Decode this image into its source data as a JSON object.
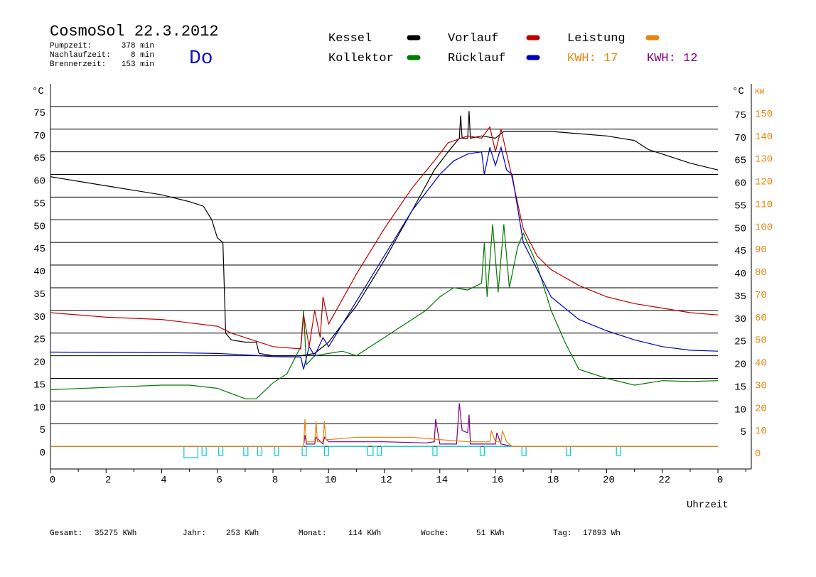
{
  "chart_data": {
    "type": "line",
    "title": "CosmoSol 22.3.2012",
    "info": [
      {
        "label": "Pumpzeit:",
        "value": "378 min"
      },
      {
        "label": "Nachlaufzeit:",
        "value": "8 min"
      },
      {
        "label": "Brennerzeit:",
        "value": "153 min"
      }
    ],
    "weekday": "Do",
    "kwh_labels": [
      {
        "label": "KWH: 17",
        "color": "#e8850f"
      },
      {
        "label": "KWH: 12",
        "color": "#800080"
      }
    ],
    "y_label": "°C",
    "y_right_label": "°C",
    "y2_label": "KW",
    "x_label": "Uhrzeit",
    "xlim": [
      0,
      25.2
    ],
    "xticks": [
      0,
      2,
      4,
      6,
      8,
      10,
      12,
      14,
      16,
      18,
      20,
      22,
      {
        "value": 24,
        "label": "0"
      }
    ],
    "ylim": [
      -5,
      80
    ],
    "yticks": [
      0,
      5,
      10,
      15,
      20,
      25,
      30,
      35,
      40,
      45,
      50,
      55,
      60,
      65,
      70,
      75
    ],
    "y_right_ticks": [
      5,
      10,
      15,
      20,
      25,
      30,
      35,
      40,
      45,
      50,
      55,
      60,
      65,
      70,
      75
    ],
    "y2lim": [
      -10,
      160
    ],
    "y2ticks": [
      0,
      10,
      20,
      30,
      40,
      50,
      60,
      70,
      80,
      90,
      100,
      110,
      120,
      130,
      140,
      150
    ],
    "grid": true,
    "series": [
      {
        "name": "Kessel",
        "color": "#000000",
        "x": [
          0,
          1,
          2,
          3,
          4,
          5,
          5.5,
          5.8,
          6,
          6.2,
          6.3,
          6.5,
          7,
          7.4,
          7.5,
          8,
          9,
          9.5,
          10,
          11,
          12,
          13,
          13.8,
          14.3,
          14.7,
          14.75,
          14.8,
          15,
          15.05,
          15.1,
          15.5,
          16,
          16.3,
          17,
          18,
          19,
          20,
          21,
          21.5,
          22,
          23,
          24
        ],
        "values": [
          59.5,
          58.5,
          57.5,
          56.5,
          55.5,
          54,
          53,
          50,
          46,
          45,
          25,
          23.5,
          23,
          23,
          20.5,
          20,
          20,
          20.5,
          23,
          31,
          41,
          52,
          61,
          65,
          68,
          73,
          68,
          68,
          74,
          68,
          68.5,
          68,
          69.5,
          69.5,
          69.5,
          69,
          68.5,
          67.5,
          65.5,
          64.5,
          62.5,
          61
        ]
      },
      {
        "name": "Kollektor",
        "color": "#007a00",
        "x": [
          0,
          2,
          4,
          5,
          6,
          7,
          7.4,
          8,
          8.5,
          9,
          9.1,
          9.2,
          9.5,
          10,
          10.5,
          11,
          11.5,
          12,
          12.5,
          13,
          13.5,
          14,
          14.5,
          15,
          15.5,
          15.6,
          15.7,
          15.9,
          16.1,
          16.3,
          16.5,
          16.8,
          17,
          17.5,
          18,
          18.5,
          19,
          20,
          21,
          22,
          23,
          24
        ],
        "values": [
          12.5,
          13,
          13.5,
          13.5,
          12.8,
          10.5,
          10.5,
          14,
          16,
          22,
          30,
          18,
          20,
          20.5,
          21,
          20,
          22,
          24,
          26,
          28,
          30,
          33,
          35,
          34.5,
          36,
          45,
          33,
          49,
          34,
          49,
          35,
          44,
          47,
          40,
          30,
          23,
          17,
          15,
          13.5,
          14.5,
          14.3,
          14.5
        ]
      },
      {
        "name": "Vorlauf",
        "color": "#c00000",
        "x": [
          0,
          2,
          4,
          6,
          6.5,
          7,
          8,
          9,
          9.1,
          9.3,
          9.5,
          9.7,
          9.8,
          10,
          11,
          12,
          13,
          13.8,
          14.3,
          15,
          15.5,
          15.8,
          16,
          16.2,
          16.5,
          17,
          17.5,
          18,
          19,
          20,
          21,
          22,
          23,
          24
        ],
        "values": [
          29.5,
          28.5,
          28,
          26.5,
          25,
          24,
          22,
          21.5,
          29,
          22,
          30,
          24,
          33,
          27,
          38,
          48,
          57,
          63,
          67,
          68.5,
          68,
          70.5,
          65,
          70,
          62,
          48,
          42,
          39,
          35.5,
          33,
          31.5,
          30.5,
          29.5,
          29
        ]
      },
      {
        "name": "Rücklauf",
        "color": "#0000c0",
        "x": [
          0,
          4,
          6,
          7,
          8,
          9,
          9.1,
          9.3,
          9.5,
          9.8,
          10,
          11,
          12,
          13,
          14,
          14.5,
          15,
          15.5,
          15.6,
          15.8,
          16,
          16.2,
          16.4,
          16.6,
          17,
          18,
          19,
          20,
          21,
          22,
          23,
          24
        ],
        "values": [
          20.8,
          20.7,
          20.5,
          20.2,
          19.8,
          19.7,
          17,
          22,
          20,
          24,
          22,
          32,
          42,
          52,
          60,
          63,
          64.5,
          65,
          60,
          66,
          62,
          66,
          61,
          60,
          45,
          33,
          28,
          25.5,
          23.5,
          22,
          21.2,
          21
        ]
      },
      {
        "name": "Leistung",
        "color": "#e8850f",
        "axis": "y2",
        "x": [
          0,
          9.1,
          9.15,
          9.2,
          9.5,
          9.55,
          9.6,
          9.8,
          9.85,
          9.9,
          10,
          11,
          12,
          13,
          14,
          15,
          15.8,
          15.85,
          16,
          16.2,
          16.25,
          16.4,
          16.6,
          24
        ],
        "values": [
          0,
          0,
          12,
          2,
          2,
          11,
          2,
          2,
          11,
          3,
          3,
          4,
          4,
          4,
          3,
          2,
          2,
          7,
          2,
          2,
          7,
          2,
          0,
          0
        ]
      }
    ],
    "lines": [
      {
        "color": "#800080",
        "axis": "y2",
        "x": [
          0,
          9.1,
          9.15,
          9.2,
          9.5,
          9.55,
          9.8,
          9.85,
          10,
          12,
          13.5,
          13.8,
          13.85,
          14,
          14.6,
          14.7,
          14.8,
          15,
          15.05,
          15.1,
          16,
          16.05,
          16.2,
          16.6,
          24
        ],
        "values": [
          0,
          0,
          5,
          1,
          1,
          4,
          1,
          4,
          2,
          2,
          1.5,
          2,
          12,
          1,
          1,
          19,
          7,
          6,
          14,
          1,
          1,
          6,
          1,
          0,
          0
        ]
      },
      {
        "color": "#00c8d0",
        "x": [
          0,
          4.8,
          4.8,
          5.3,
          5.3,
          5.45,
          5.45,
          5.6,
          5.6,
          6.05,
          6.05,
          6.2,
          6.2,
          6.95,
          6.95,
          7.1,
          7.1,
          7.45,
          7.45,
          7.6,
          7.6,
          8.05,
          8.05,
          8.2,
          8.2,
          9.05,
          9.05,
          9.2,
          9.2,
          9.85,
          9.85,
          10,
          10,
          11.4,
          11.4,
          11.6,
          11.6,
          11.75,
          11.75,
          11.9,
          11.9,
          13.75,
          13.75,
          13.9,
          13.9,
          15.45,
          15.45,
          15.6,
          15.6,
          16.95,
          16.95,
          17.1,
          17.1,
          18.55,
          18.55,
          18.7,
          18.7,
          20.35,
          20.35,
          20.5,
          20.5,
          24
        ],
        "values": [
          0,
          0,
          -2.5,
          -2.5,
          0,
          0,
          -2,
          -2,
          0,
          0,
          -2,
          -2,
          0,
          0,
          -2,
          -2,
          0,
          0,
          -2,
          -2,
          0,
          0,
          -2,
          -2,
          0,
          0,
          -2,
          -2,
          0,
          0,
          -2,
          -2,
          0,
          0,
          -2,
          -2,
          0,
          0,
          -2,
          -2,
          0,
          0,
          -2,
          -2,
          0,
          0,
          -2,
          -2,
          0,
          0,
          -2,
          -2,
          0,
          0,
          -2,
          -2,
          0,
          0,
          -2,
          -2,
          0,
          0
        ]
      }
    ],
    "totals": [
      {
        "label": "Gesamt:",
        "value": "35275 KWh"
      },
      {
        "label": "Jahr:",
        "value": "253 KWh"
      },
      {
        "label": "Monat:",
        "value": "114 KWh"
      },
      {
        "label": "Woche:",
        "value": "51 KWh"
      },
      {
        "label": "Tag:",
        "value": "17893 Wh"
      }
    ]
  }
}
